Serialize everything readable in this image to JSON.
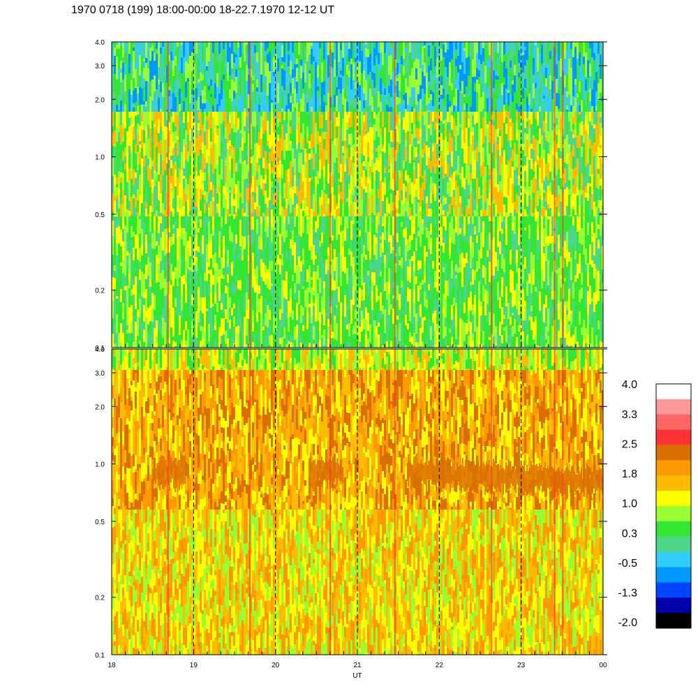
{
  "title": "1970 0718 (199) 18:00-00:00 18-22.7.1970  12-12 UT",
  "chart_data": [
    {
      "type": "heatmap",
      "panel": "upper",
      "x_range": [
        18,
        24
      ],
      "x_tick_labels": [
        "18",
        "19",
        "20",
        "21",
        "22",
        "23",
        "00"
      ],
      "y_scale": "log",
      "y_range": [
        0.1,
        4.0
      ],
      "y_ticks": [
        0.1,
        0.2,
        0.5,
        1.0,
        2.0,
        3.0,
        4.0
      ],
      "y_tick_labels": [
        "0.1",
        "0.2",
        "0.5",
        "1.0",
        "2.0",
        "3.0",
        "4.0"
      ],
      "dashed_hour_lines": [
        19,
        20,
        21,
        22,
        23
      ],
      "dominant_levels": {
        "low_freq": 0.3,
        "mid_freq": 1.0,
        "high_freq": -0.5
      }
    },
    {
      "type": "heatmap",
      "panel": "lower",
      "x_range": [
        18,
        24
      ],
      "x_tick_labels": [
        "18",
        "19",
        "20",
        "21",
        "22",
        "23",
        "00"
      ],
      "xlabel": "UT",
      "y_scale": "log",
      "y_range": [
        0.1,
        4.0
      ],
      "y_ticks": [
        0.1,
        0.2,
        0.5,
        1.0,
        2.0,
        3.0,
        4.0
      ],
      "y_tick_labels": [
        "0.1",
        "0.2",
        "0.5",
        "1.0",
        "2.0",
        "3.0",
        "4.0"
      ],
      "dashed_hour_lines": [
        19,
        20,
        21,
        22,
        23
      ],
      "dominant_levels": {
        "low_freq": 1.8,
        "mid_freq": 2.5,
        "high_freq": 1.4
      }
    }
  ],
  "colorbar": {
    "labels": [
      "4.0",
      "3.3",
      "2.5",
      "1.8",
      "1.0",
      "0.3",
      "-0.5",
      "-1.3",
      "-2.0"
    ],
    "colors_top_to_bottom": [
      "#ffffff",
      "#ff9999",
      "#ff6666",
      "#ff3333",
      "#d97000",
      "#ff9900",
      "#ffbb00",
      "#ffff00",
      "#99ff33",
      "#33e633",
      "#4dd68a",
      "#33ccff",
      "#0099ff",
      "#0044ff",
      "#0000aa",
      "#000000"
    ]
  }
}
